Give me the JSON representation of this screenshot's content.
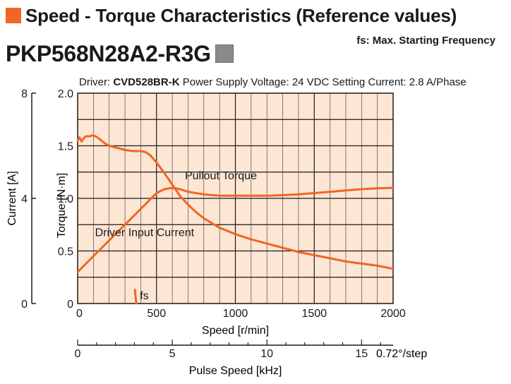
{
  "header": {
    "title": "Speed - Torque Characteristics (Reference values)",
    "model": "PKP568N28A2-R3G",
    "fs_note": "fs: Max. Starting Frequency",
    "driver_label": "Driver:",
    "driver_model": "CVD528BR-K",
    "supply_voltage": "Power Supply Voltage: 24 VDC",
    "setting_current": "Setting Current: 2.8 A/Phase"
  },
  "colors": {
    "accent": "#f26522",
    "plot_background": "#fde6d4",
    "curve": "#f26522",
    "model_badge": "#8a8a8a"
  },
  "chart_data": {
    "type": "line",
    "xlabel": "Speed [r/min]",
    "ylabel": "Torque [N·m]",
    "y2label": "Current [A]",
    "x2label": "Pulse Speed [kHz]",
    "x2_unit_note": "0.72°/step",
    "xlim": [
      0,
      2000
    ],
    "ylim": [
      0,
      2.0
    ],
    "y2lim": [
      0,
      8
    ],
    "x2lim": [
      0,
      16.667
    ],
    "x_ticks": [
      "0",
      "500",
      "1000",
      "1500",
      "2000"
    ],
    "y_ticks": [
      "0",
      "0.5",
      "1.0",
      "1.5",
      "2.0"
    ],
    "y2_ticks": [
      "0",
      "4",
      "8"
    ],
    "x2_ticks": [
      "0",
      "5",
      "10",
      "15"
    ],
    "grid": true,
    "series": [
      {
        "name": "Pullout Torque",
        "axis": "torque",
        "x": [
          0,
          12,
          25,
          38,
          50,
          75,
          100,
          125,
          150,
          175,
          200,
          250,
          300,
          350,
          400,
          430,
          460,
          500,
          550,
          600,
          650,
          700,
          750,
          800,
          900,
          1000,
          1100,
          1200,
          1300,
          1400,
          1500,
          1600,
          1700,
          1800,
          1900,
          2000
        ],
        "y": [
          1.55,
          1.58,
          1.54,
          1.57,
          1.59,
          1.59,
          1.6,
          1.58,
          1.55,
          1.52,
          1.5,
          1.48,
          1.46,
          1.45,
          1.45,
          1.44,
          1.41,
          1.34,
          1.24,
          1.13,
          1.02,
          0.94,
          0.87,
          0.81,
          0.72,
          0.66,
          0.61,
          0.57,
          0.53,
          0.49,
          0.46,
          0.43,
          0.4,
          0.38,
          0.36,
          0.33
        ]
      },
      {
        "name": "Driver Input Current",
        "axis": "current",
        "x": [
          0,
          100,
          200,
          300,
          400,
          500,
          550,
          600,
          650,
          700,
          800,
          900,
          1000,
          1100,
          1200,
          1300,
          1400,
          1500,
          1600,
          1700,
          1800,
          1900,
          2000
        ],
        "y": [
          1.2,
          1.8,
          2.4,
          3.0,
          3.6,
          4.2,
          4.35,
          4.4,
          4.35,
          4.25,
          4.15,
          4.1,
          4.1,
          4.1,
          4.1,
          4.12,
          4.15,
          4.2,
          4.25,
          4.3,
          4.35,
          4.38,
          4.4
        ]
      },
      {
        "name": "fs",
        "axis": "torque",
        "x": [
          363,
          372
        ],
        "y": [
          0.13,
          0.0
        ]
      }
    ],
    "annotations": [
      {
        "text": "Pullout Torque",
        "x": 680,
        "y": 1.22
      },
      {
        "text": "Driver Input Current",
        "x": 110,
        "y": 0.68
      },
      {
        "text": "fs",
        "x": 395,
        "y": 0.08
      }
    ]
  }
}
